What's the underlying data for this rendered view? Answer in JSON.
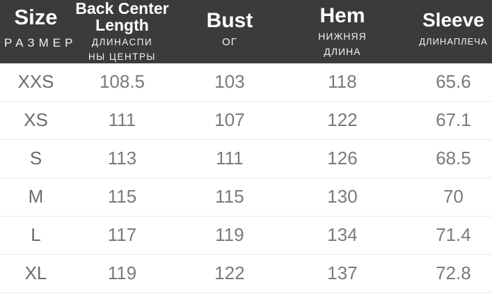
{
  "chart_data": {
    "type": "table",
    "title": "",
    "columns": [
      {
        "label_en": "Size",
        "label_ru": "РАЗМЕР"
      },
      {
        "label_en": "Back Center Length",
        "label_ru": "ДЛИНАСПИ НЫ ЦЕНТРЫ"
      },
      {
        "label_en": "Bust",
        "label_ru": "ОГ"
      },
      {
        "label_en": "Hem",
        "label_ru": "НИЖНЯЯ ДЛИНА"
      },
      {
        "label_en": "Sleeve",
        "label_ru": "ДЛИНАПЛЕЧА"
      }
    ],
    "rows": [
      [
        "XXS",
        "108.5",
        "103",
        "118",
        "65.6"
      ],
      [
        "XS",
        "111",
        "107",
        "122",
        "67.1"
      ],
      [
        "S",
        "113",
        "111",
        "126",
        "68.5"
      ],
      [
        "M",
        "115",
        "115",
        "130",
        "70"
      ],
      [
        "L",
        "117",
        "119",
        "134",
        "71.4"
      ],
      [
        "XL",
        "119",
        "122",
        "137",
        "72.8"
      ]
    ]
  },
  "display": {
    "header": [
      {
        "en1": "Size",
        "en2": "",
        "ru1": "РАЗМЕР",
        "ru2": ""
      },
      {
        "en1": "Back Center",
        "en2": "Length",
        "ru1": "ДЛИНАСПИ",
        "ru2": "НЫ ЦЕНТРЫ"
      },
      {
        "en1": "Bust",
        "en2": "",
        "ru1": "ОГ",
        "ru2": ""
      },
      {
        "en1": "Hem",
        "en2": "",
        "ru1": "НИЖНЯЯ",
        "ru2": "ДЛИНА"
      },
      {
        "en1": "Sleeve",
        "en2": "",
        "ru1": "ДЛИНАПЛЕЧА",
        "ru2": ""
      }
    ]
  },
  "colors": {
    "header_bg": "#3b3b3b",
    "header_text": "#ffffff",
    "body_text": "#7a7a7a",
    "divider": "#e9e9e9",
    "background": "#ffffff"
  }
}
